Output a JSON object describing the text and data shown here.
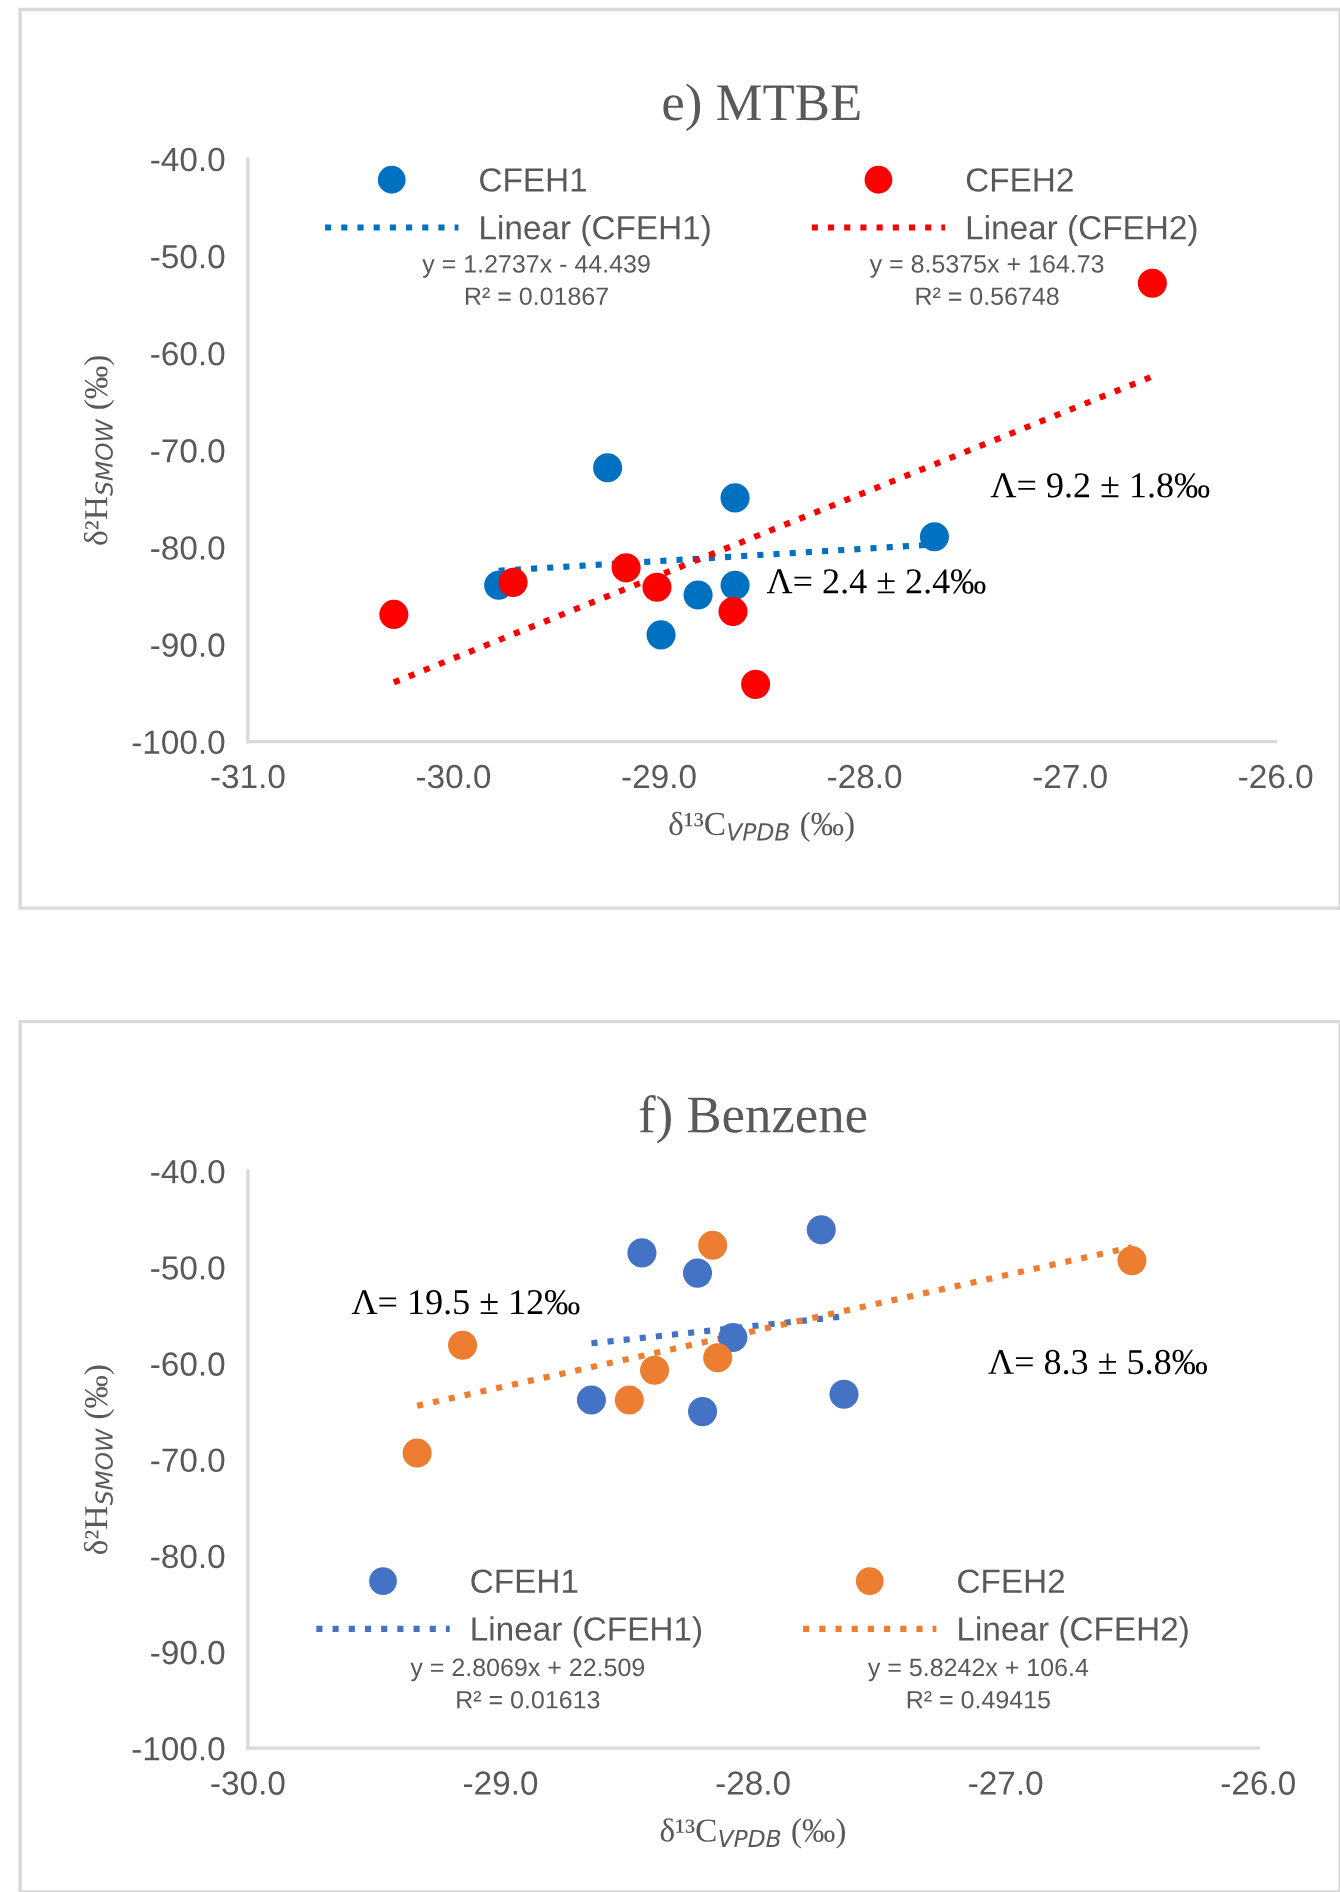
{
  "chart_data": [
    {
      "type": "scatter",
      "title": "e) MTBE",
      "xlabel": "δ¹³C$_{VPDB}$ (‰)",
      "ylabel": "δ²H$_{SMOW}$ (‰)",
      "xlim": [
        -31,
        -26
      ],
      "ylim": [
        -100,
        -40
      ],
      "xticks": [
        {
          "value": -31,
          "label": "-31.0"
        },
        {
          "value": -30,
          "label": "-30.0"
        },
        {
          "value": -29,
          "label": "-29.0"
        },
        {
          "value": -28,
          "label": "-28.0"
        },
        {
          "value": -27,
          "label": "-27.0"
        },
        {
          "value": -26,
          "label": "-26.0"
        }
      ],
      "yticks": [
        {
          "value": -100,
          "label": "-100.0"
        },
        {
          "value": -90,
          "label": "-90.0"
        },
        {
          "value": -80,
          "label": "-80.0"
        },
        {
          "value": -70,
          "label": "-70.0"
        },
        {
          "value": -60,
          "label": "-60.0"
        },
        {
          "value": -50,
          "label": "-50.0"
        },
        {
          "value": -40,
          "label": "-40.0"
        }
      ],
      "grid": false,
      "legend": "top",
      "series": [
        {
          "name": "CFEH1",
          "marker": "circle",
          "color": "#0070c0",
          "x": [
            -29.78,
            -29.25,
            -28.63,
            -27.66,
            -28.81,
            -28.63,
            -28.99
          ],
          "values": [
            -83.9,
            -71.8,
            -74.9,
            -78.9,
            -84.9,
            -83.9,
            -89.0
          ]
        },
        {
          "name": "CFEH2",
          "marker": "circle",
          "color": "#ff0000",
          "x": [
            -30.29,
            -29.71,
            -29.16,
            -29.01,
            -28.64,
            -28.53,
            -26.6
          ],
          "values": [
            -86.9,
            -83.6,
            -82.1,
            -84.1,
            -86.6,
            -94.1,
            -52.8
          ]
        },
        {
          "name": "Linear (CFEH1)",
          "type": "line",
          "line_style": "dotted",
          "color": "#0070c0",
          "x": [
            -29.78,
            -27.66
          ],
          "values": [
            -82.4,
            -79.7
          ]
        },
        {
          "name": "Linear (CFEH2)",
          "type": "line",
          "line_style": "dotted",
          "color": "#ff0000",
          "x": [
            -30.29,
            -26.6
          ],
          "values": [
            -93.9,
            -62.4
          ]
        }
      ],
      "annotations": [
        "y = 1.2737x - 44.439\nR² = 0.01867",
        "y = 8.5375x + 164.73\nR² = 0.56748",
        "Λ= 2.4 ± 2.4‰",
        "Λ= 9.2 ± 1.8‰"
      ]
    },
    {
      "type": "scatter",
      "title": "f) Benzene",
      "xlabel": "δ¹³C$_{VPDB}$ (‰)",
      "ylabel": "δ²H$_{SMOW}$ (‰)",
      "xlim": [
        -30,
        -26
      ],
      "ylim": [
        -100,
        -40
      ],
      "xticks": [
        {
          "value": -30,
          "label": "-30.0"
        },
        {
          "value": -29,
          "label": "-29.0"
        },
        {
          "value": -28,
          "label": "-28.0"
        },
        {
          "value": -27,
          "label": "-27.0"
        },
        {
          "value": -26,
          "label": "-26.0"
        }
      ],
      "yticks": [
        {
          "value": -100,
          "label": "-100.0"
        },
        {
          "value": -90,
          "label": "-90.0"
        },
        {
          "value": -80,
          "label": "-80.0"
        },
        {
          "value": -70,
          "label": "-70.0"
        },
        {
          "value": -60,
          "label": "-60.0"
        },
        {
          "value": -50,
          "label": "-50.0"
        },
        {
          "value": -40,
          "label": "-40.0"
        }
      ],
      "grid": false,
      "legend": "bottom",
      "series": [
        {
          "name": "CFEH1",
          "marker": "circle",
          "color": "#4472c4",
          "x": [
            -28.44,
            -28.22,
            -27.73,
            -28.08,
            -28.64,
            -28.2,
            -27.64
          ],
          "values": [
            -48.5,
            -50.6,
            -46.1,
            -57.3,
            -63.8,
            -65.0,
            -63.2
          ]
        },
        {
          "name": "CFEH2",
          "marker": "circle",
          "color": "#ed7d31",
          "x": [
            -29.15,
            -29.33,
            -28.16,
            -26.5,
            -28.39,
            -28.49,
            -28.14
          ],
          "values": [
            -58.1,
            -69.3,
            -47.7,
            -49.3,
            -60.7,
            -63.8,
            -59.4
          ]
        },
        {
          "name": "Linear (CFEH1)",
          "type": "line",
          "line_style": "dotted",
          "color": "#4472c4",
          "x": [
            -28.64,
            -27.64
          ],
          "values": [
            -57.9,
            -55.1
          ]
        },
        {
          "name": "Linear (CFEH2)",
          "type": "line",
          "line_style": "dotted",
          "color": "#ed7d31",
          "x": [
            -29.33,
            -26.5
          ],
          "values": [
            -64.4,
            -47.9
          ]
        }
      ],
      "annotations": [
        "y = 2.8069x + 22.509\nR² = 0.01613",
        "y = 5.8242x + 106.4\nR² = 0.49415",
        "Λ= 19.5 ± 12‰",
        "Λ= 8.3 ± 5.8‰"
      ]
    }
  ]
}
